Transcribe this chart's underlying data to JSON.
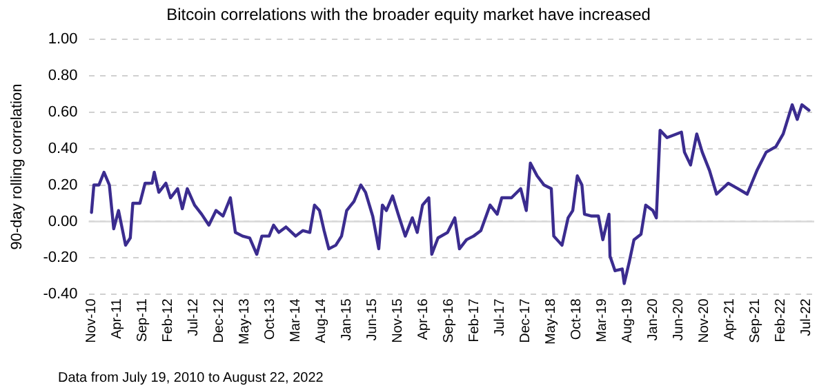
{
  "chart_data": {
    "type": "line",
    "title": "Bitcoin correlations with the broader equity market have increased",
    "ylabel": "90-day rolling correlation",
    "annotations": [
      "Data from July 19, 2010 to August 22, 2022"
    ],
    "x": [
      "2010-11-01",
      "2010-11-15",
      "2010-12-15",
      "2011-01-15",
      "2011-02-15",
      "2011-03-12",
      "2011-04-10",
      "2011-05-22",
      "2011-06-19",
      "2011-07-04",
      "2011-08-16",
      "2011-09-16",
      "2011-10-28",
      "2011-11-10",
      "2011-12-07",
      "2012-01-19",
      "2012-02-15",
      "2012-03-28",
      "2012-04-25",
      "2012-05-25",
      "2012-07-07",
      "2012-08-19",
      "2012-10-01",
      "2012-11-13",
      "2012-12-25",
      "2013-02-07",
      "2013-03-07",
      "2013-04-19",
      "2013-06-01",
      "2013-07-13",
      "2013-08-13",
      "2013-09-25",
      "2013-10-22",
      "2013-11-22",
      "2014-01-04",
      "2014-03-01",
      "2014-04-13",
      "2014-05-25",
      "2014-06-22",
      "2014-07-22",
      "2014-08-19",
      "2014-09-16",
      "2014-10-28",
      "2014-12-01",
      "2015-01-01",
      "2015-02-13",
      "2015-03-25",
      "2015-04-22",
      "2015-06-04",
      "2015-07-10",
      "2015-08-01",
      "2015-08-25",
      "2015-10-01",
      "2015-11-04",
      "2015-12-16",
      "2016-01-28",
      "2016-02-25",
      "2016-03-28",
      "2016-05-04",
      "2016-05-22",
      "2016-06-28",
      "2016-08-25",
      "2016-10-07",
      "2016-11-04",
      "2016-12-16",
      "2017-01-28",
      "2017-03-10",
      "2017-05-04",
      "2017-06-16",
      "2017-07-13",
      "2017-09-10",
      "2017-11-04",
      "2017-12-07",
      "2018-01-01",
      "2018-02-10",
      "2018-03-22",
      "2018-05-04",
      "2018-05-19",
      "2018-07-07",
      "2018-08-13",
      "2018-09-10",
      "2018-10-07",
      "2018-11-04",
      "2018-11-19",
      "2019-01-01",
      "2019-02-10",
      "2019-03-07",
      "2019-04-13",
      "2019-04-19",
      "2019-05-19",
      "2019-07-01",
      "2019-07-13",
      "2019-08-13",
      "2019-09-10",
      "2019-10-22",
      "2019-11-19",
      "2020-01-01",
      "2020-01-22",
      "2020-02-13",
      "2020-03-25",
      "2020-06-19",
      "2020-07-07",
      "2020-08-13",
      "2020-09-19",
      "2020-10-22",
      "2020-12-04",
      "2021-01-16",
      "2021-03-25",
      "2021-05-22",
      "2021-07-16",
      "2021-09-13",
      "2021-11-07",
      "2022-01-04",
      "2022-02-16",
      "2022-04-10",
      "2022-05-10",
      "2022-06-07",
      "2022-07-19"
    ],
    "series": [
      {
        "color": "#3b2c8f",
        "values": [
          0.05,
          0.2,
          0.2,
          0.27,
          0.2,
          -0.04,
          0.06,
          -0.13,
          -0.09,
          0.1,
          0.1,
          0.21,
          0.21,
          0.27,
          0.16,
          0.21,
          0.13,
          0.18,
          0.07,
          0.18,
          0.09,
          0.04,
          -0.02,
          0.06,
          0.03,
          0.13,
          -0.06,
          -0.08,
          -0.09,
          -0.18,
          -0.08,
          -0.08,
          -0.02,
          -0.06,
          -0.03,
          -0.08,
          -0.05,
          -0.06,
          0.09,
          0.06,
          -0.05,
          -0.15,
          -0.13,
          -0.08,
          0.06,
          0.11,
          0.2,
          0.16,
          0.03,
          -0.15,
          0.09,
          0.06,
          0.14,
          0.04,
          -0.08,
          0.02,
          -0.06,
          0.09,
          0.13,
          -0.18,
          -0.09,
          -0.06,
          0.02,
          -0.15,
          -0.1,
          -0.08,
          -0.05,
          0.09,
          0.04,
          0.13,
          0.13,
          0.18,
          0.06,
          0.32,
          0.25,
          0.2,
          0.18,
          -0.08,
          -0.13,
          0.02,
          0.06,
          0.25,
          0.2,
          0.04,
          0.03,
          0.03,
          -0.1,
          0.04,
          -0.19,
          -0.27,
          -0.26,
          -0.34,
          -0.22,
          -0.1,
          -0.07,
          0.09,
          0.06,
          0.02,
          0.5,
          0.46,
          0.49,
          0.38,
          0.31,
          0.48,
          0.38,
          0.28,
          0.15,
          0.21,
          0.18,
          0.15,
          0.28,
          0.38,
          0.41,
          0.48,
          0.64,
          0.56,
          0.64,
          0.61
        ]
      }
    ],
    "xlim": [
      "2010-10-15",
      "2022-08-20"
    ],
    "xticks": [
      {
        "value": "2010-11",
        "label": "Nov-10"
      },
      {
        "value": "2011-04",
        "label": "Apr-11"
      },
      {
        "value": "2011-09",
        "label": "Sep-11"
      },
      {
        "value": "2012-02",
        "label": "Feb-12"
      },
      {
        "value": "2012-07",
        "label": "Jul-12"
      },
      {
        "value": "2012-12",
        "label": "Dec-12"
      },
      {
        "value": "2013-05",
        "label": "May-13"
      },
      {
        "value": "2013-10",
        "label": "Oct-13"
      },
      {
        "value": "2014-03",
        "label": "Mar-14"
      },
      {
        "value": "2014-08",
        "label": "Aug-14"
      },
      {
        "value": "2015-01",
        "label": "Jan-15"
      },
      {
        "value": "2015-06",
        "label": "Jun-15"
      },
      {
        "value": "2015-11",
        "label": "Nov-15"
      },
      {
        "value": "2016-04",
        "label": "Apr-16"
      },
      {
        "value": "2016-09",
        "label": "Sep-16"
      },
      {
        "value": "2017-02",
        "label": "Feb-17"
      },
      {
        "value": "2017-07",
        "label": "Jul-17"
      },
      {
        "value": "2017-12",
        "label": "Dec-17"
      },
      {
        "value": "2018-05",
        "label": "May-18"
      },
      {
        "value": "2018-10",
        "label": "Oct-18"
      },
      {
        "value": "2019-03",
        "label": "Mar-19"
      },
      {
        "value": "2019-08",
        "label": "Aug-19"
      },
      {
        "value": "2020-01",
        "label": "Jan-20"
      },
      {
        "value": "2020-06",
        "label": "Jun-20"
      },
      {
        "value": "2020-11",
        "label": "Nov-20"
      },
      {
        "value": "2021-04",
        "label": "Apr-21"
      },
      {
        "value": "2021-09",
        "label": "Sep-21"
      },
      {
        "value": "2022-02",
        "label": "Feb-22"
      },
      {
        "value": "2022-07",
        "label": "Jul-22"
      }
    ],
    "ylim": [
      -0.4,
      1.0
    ],
    "yticks": [
      {
        "value": -0.4,
        "label": "-0.40"
      },
      {
        "value": -0.2,
        "label": "-0.20"
      },
      {
        "value": 0,
        "label": "0.00"
      },
      {
        "value": 0.2,
        "label": "0.20"
      },
      {
        "value": 0.4,
        "label": "0.40"
      },
      {
        "value": 0.6,
        "label": "0.60"
      },
      {
        "value": 0.8,
        "label": "0.80"
      },
      {
        "value": 1.0,
        "label": "1.00"
      }
    ],
    "grid": "y",
    "legend": false,
    "marker": "none",
    "line_style": "solid"
  }
}
